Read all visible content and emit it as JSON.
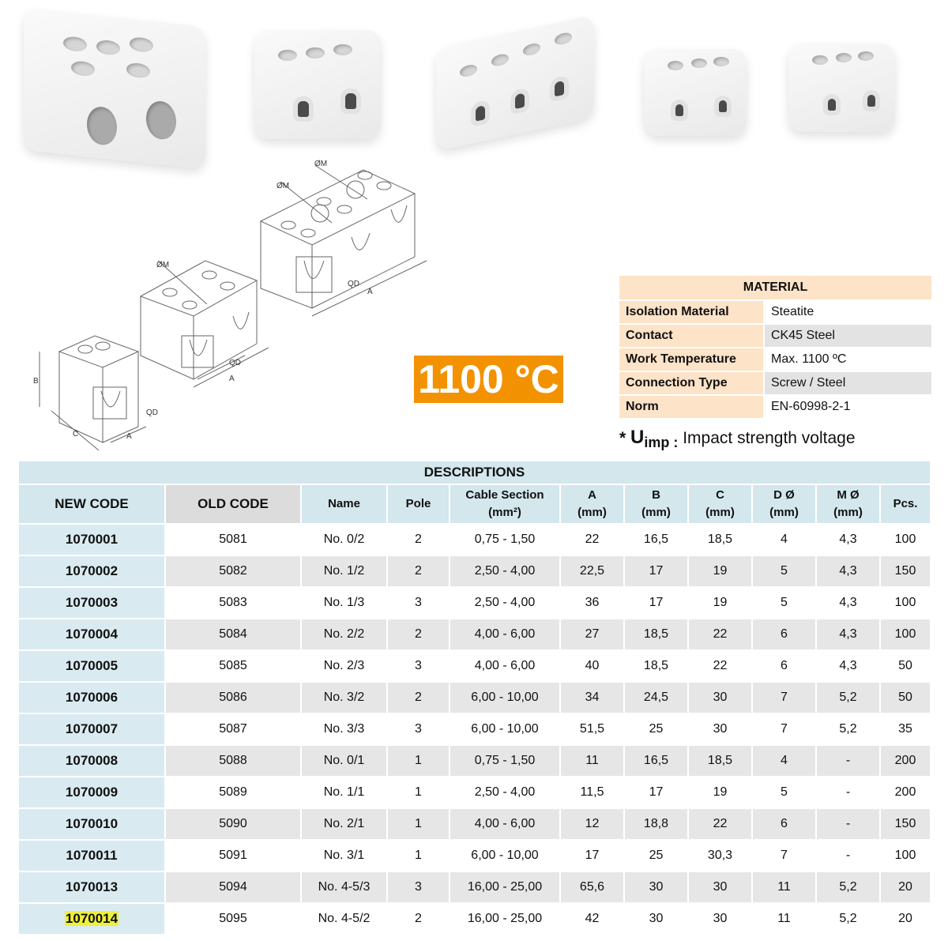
{
  "temperature_badge": "1100 °C",
  "diagram_labels": {
    "m": "ØM",
    "qd": "QD",
    "a": "A",
    "b": "B",
    "c": "C"
  },
  "material": {
    "title": "MATERIAL",
    "rows": [
      {
        "key": "Isolation Material",
        "value": "Steatite"
      },
      {
        "key": "Contact",
        "value": "CK45 Steel"
      },
      {
        "key": "Work Temperature",
        "value": "Max. 1100 ºC"
      },
      {
        "key": "Connection Type",
        "value": "Screw / Steel"
      },
      {
        "key": "Norm",
        "value": "EN-60998-2-1"
      }
    ]
  },
  "note": {
    "star": "*",
    "symbol": "U",
    "sub": "imp :",
    "text": "Impact strength voltage"
  },
  "descriptions": {
    "title": "DESCRIPTIONS",
    "headers": {
      "new_code": "NEW CODE",
      "old_code": "OLD CODE",
      "name": "Name",
      "pole": "Pole",
      "cable": "Cable Section",
      "cable_unit": "(mm²)",
      "a": "A",
      "b": "B",
      "c": "C",
      "d": "D Ø",
      "m": "M Ø",
      "mm": "(mm)",
      "pcs": "Pcs."
    },
    "highlight_color": "#f0f03a",
    "rows": [
      [
        "1070001",
        "5081",
        "No. 0/2",
        "2",
        "0,75 - 1,50",
        "22",
        "16,5",
        "18,5",
        "4",
        "4,3",
        "100"
      ],
      [
        "1070002",
        "5082",
        "No. 1/2",
        "2",
        "2,50 - 4,00",
        "22,5",
        "17",
        "19",
        "5",
        "4,3",
        "150"
      ],
      [
        "1070003",
        "5083",
        "No. 1/3",
        "3",
        "2,50 - 4,00",
        "36",
        "17",
        "19",
        "5",
        "4,3",
        "100"
      ],
      [
        "1070004",
        "5084",
        "No. 2/2",
        "2",
        "4,00 - 6,00",
        "27",
        "18,5",
        "22",
        "6",
        "4,3",
        "100"
      ],
      [
        "1070005",
        "5085",
        "No. 2/3",
        "3",
        "4,00 - 6,00",
        "40",
        "18,5",
        "22",
        "6",
        "4,3",
        "50"
      ],
      [
        "1070006",
        "5086",
        "No. 3/2",
        "2",
        "6,00 - 10,00",
        "34",
        "24,5",
        "30",
        "7",
        "5,2",
        "50"
      ],
      [
        "1070007",
        "5087",
        "No. 3/3",
        "3",
        "6,00 - 10,00",
        "51,5",
        "25",
        "30",
        "7",
        "5,2",
        "35"
      ],
      [
        "1070008",
        "5088",
        "No. 0/1",
        "1",
        "0,75 - 1,50",
        "11",
        "16,5",
        "18,5",
        "4",
        "-",
        "200"
      ],
      [
        "1070009",
        "5089",
        "No. 1/1",
        "1",
        "2,50 - 4,00",
        "11,5",
        "17",
        "19",
        "5",
        "-",
        "200"
      ],
      [
        "1070010",
        "5090",
        "No. 2/1",
        "1",
        "4,00 - 6,00",
        "12",
        "18,8",
        "22",
        "6",
        "-",
        "150"
      ],
      [
        "1070011",
        "5091",
        "No. 3/1",
        "1",
        "6,00 - 10,00",
        "17",
        "25",
        "30,3",
        "7",
        "-",
        "100"
      ],
      [
        "1070013",
        "5094",
        "No. 4-5/3",
        "3",
        "16,00 - 25,00",
        "65,6",
        "30",
        "30",
        "11",
        "5,2",
        "20"
      ],
      [
        "1070014",
        "5095",
        "No. 4-5/2",
        "2",
        "16,00 - 25,00",
        "42",
        "30",
        "30",
        "11",
        "5,2",
        "20"
      ]
    ]
  }
}
